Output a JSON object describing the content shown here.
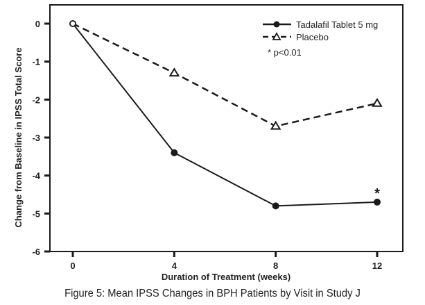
{
  "chart_data": {
    "type": "line",
    "title": "",
    "xlabel": "Duration of Treatment (weeks)",
    "ylabel": "Change from Baseline in IPSS Total Score",
    "x": [
      0,
      4,
      8,
      12
    ],
    "x_ticks": [
      "0",
      "4",
      "8",
      "12"
    ],
    "y_ticks": [
      "0",
      "-1",
      "-2",
      "-3",
      "-4",
      "-5",
      "-6"
    ],
    "xlim": [
      0,
      12
    ],
    "ylim": [
      -6,
      0
    ],
    "grid": false,
    "legend_position": "top-right",
    "series": [
      {
        "name": "Tadalafil Tablet 5 mg",
        "values": [
          0,
          -3.4,
          -4.8,
          -4.7
        ],
        "line_style": "solid",
        "marker": "filled-circle",
        "color": "#1a1a1a"
      },
      {
        "name": "Placebo",
        "values": [
          0,
          -1.3,
          -2.7,
          -2.1
        ],
        "line_style": "dashed",
        "marker": "open-triangle",
        "color": "#1a1a1a"
      }
    ],
    "annotations": [
      {
        "text": "* p<0.01",
        "location": "legend"
      },
      {
        "text": "*",
        "x": 12,
        "series": "Tadalafil Tablet 5 mg"
      }
    ]
  },
  "caption": "Figure 5: Mean IPSS Changes in BPH Patients by Visit in Study J"
}
